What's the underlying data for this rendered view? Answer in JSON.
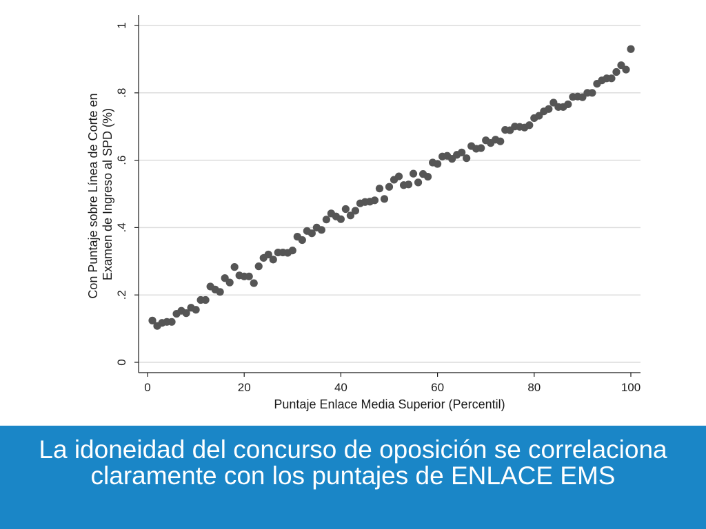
{
  "caption": {
    "line1": "La idoneidad del concurso de oposición se correlaciona",
    "line2": "claramente con los puntajes de ENLACE EMS"
  },
  "colors": {
    "marker": "#555555",
    "grid": "#dcdcdc",
    "axis": "#1a1a1a",
    "banner": "#1a86c7",
    "caption_text": "#ffffff"
  },
  "chart_data": {
    "type": "scatter",
    "title": "",
    "xlabel": "Puntaje Enlace Media Superior (Percentil)",
    "ylabel_lines": [
      "Con Puntaje sobre Línea de Corte en",
      "Examen de Ingreso al SPD (%)"
    ],
    "xlim": [
      0,
      100
    ],
    "ylim": [
      0,
      1
    ],
    "x_ticks": [
      0,
      20,
      40,
      60,
      80,
      100
    ],
    "x_tick_labels": [
      "0",
      "20",
      "40",
      "60",
      "80",
      "100"
    ],
    "y_ticks": [
      0,
      0.2,
      0.4,
      0.6,
      0.8,
      1
    ],
    "y_tick_labels": [
      "0",
      ".2",
      ".4",
      ".6",
      ".8",
      "1"
    ],
    "grid": "horizontal",
    "legend": "none",
    "x": [
      1,
      2,
      3,
      4,
      5,
      6,
      7,
      8,
      9,
      10,
      11,
      12,
      13,
      14,
      15,
      16,
      17,
      18,
      19,
      20,
      21,
      22,
      23,
      24,
      25,
      26,
      27,
      28,
      29,
      30,
      31,
      32,
      33,
      34,
      35,
      36,
      37,
      38,
      39,
      40,
      41,
      42,
      43,
      44,
      45,
      46,
      47,
      48,
      49,
      50,
      51,
      52,
      53,
      54,
      55,
      56,
      57,
      58,
      59,
      60,
      61,
      62,
      63,
      64,
      65,
      66,
      67,
      68,
      69,
      70,
      71,
      72,
      73,
      74,
      75,
      76,
      77,
      78,
      79,
      80,
      81,
      82,
      83,
      84,
      85,
      86,
      87,
      88,
      89,
      90,
      91,
      92,
      93,
      94,
      95,
      96,
      97,
      98,
      99,
      100
    ],
    "y": [
      0.124,
      0.108,
      0.117,
      0.12,
      0.12,
      0.144,
      0.153,
      0.146,
      0.162,
      0.156,
      0.185,
      0.185,
      0.225,
      0.216,
      0.209,
      0.25,
      0.237,
      0.283,
      0.258,
      0.255,
      0.255,
      0.235,
      0.285,
      0.31,
      0.32,
      0.305,
      0.326,
      0.326,
      0.325,
      0.332,
      0.373,
      0.363,
      0.39,
      0.383,
      0.4,
      0.393,
      0.424,
      0.442,
      0.433,
      0.425,
      0.455,
      0.436,
      0.45,
      0.472,
      0.476,
      0.477,
      0.481,
      0.516,
      0.485,
      0.521,
      0.542,
      0.552,
      0.526,
      0.528,
      0.56,
      0.534,
      0.559,
      0.551,
      0.593,
      0.589,
      0.611,
      0.613,
      0.604,
      0.616,
      0.623,
      0.606,
      0.642,
      0.634,
      0.636,
      0.659,
      0.651,
      0.661,
      0.656,
      0.69,
      0.689,
      0.7,
      0.699,
      0.697,
      0.704,
      0.725,
      0.732,
      0.745,
      0.752,
      0.771,
      0.758,
      0.758,
      0.766,
      0.788,
      0.789,
      0.787,
      0.8,
      0.8,
      0.827,
      0.837,
      0.843,
      0.843,
      0.862,
      0.882,
      0.869,
      0.93
    ]
  }
}
